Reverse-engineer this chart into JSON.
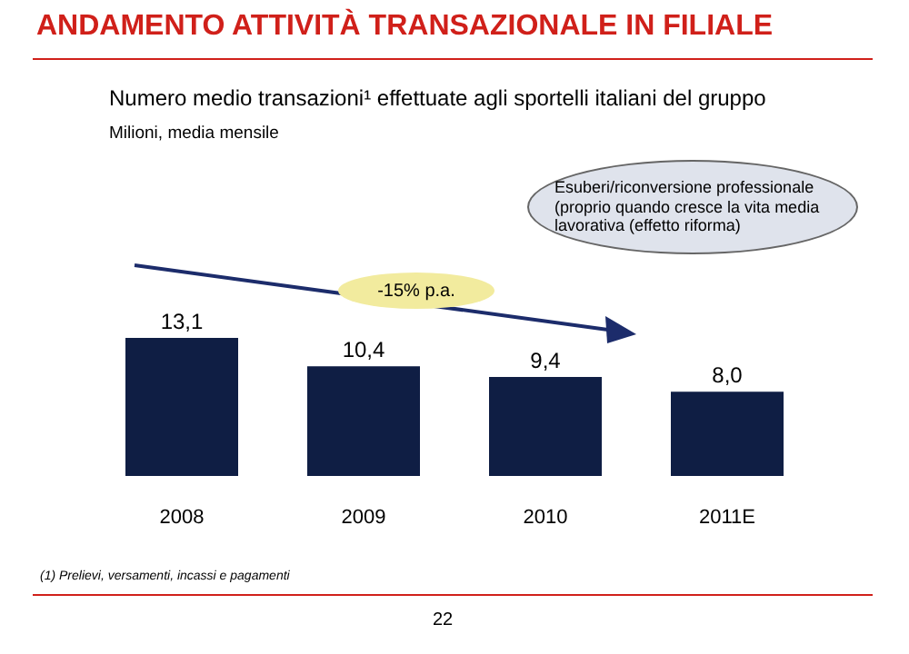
{
  "chart_data": {
    "type": "bar",
    "title": "ANDAMENTO ATTIVITÀ TRANSAZIONALE IN FILIALE",
    "subtitle": "Numero medio transazioni¹ effettuate agli sportelli italiani del gruppo",
    "categories": [
      "2008",
      "2009",
      "2010",
      "2011E"
    ],
    "values": [
      13.1,
      10.4,
      9.4,
      8.0
    ],
    "value_labels": [
      "13,1",
      "10,4",
      "9,4",
      "8,0"
    ],
    "color": "#0f1e44",
    "annotations": [
      "Milioni, media mensile",
      "-15% p.a.",
      "Esuberi/riconversione professionale (proprio quando cresce la vita media lavorativa (effetto riforma)",
      "(1) Prelievi, versamenti, incassi e pagamenti",
      "22"
    ]
  }
}
